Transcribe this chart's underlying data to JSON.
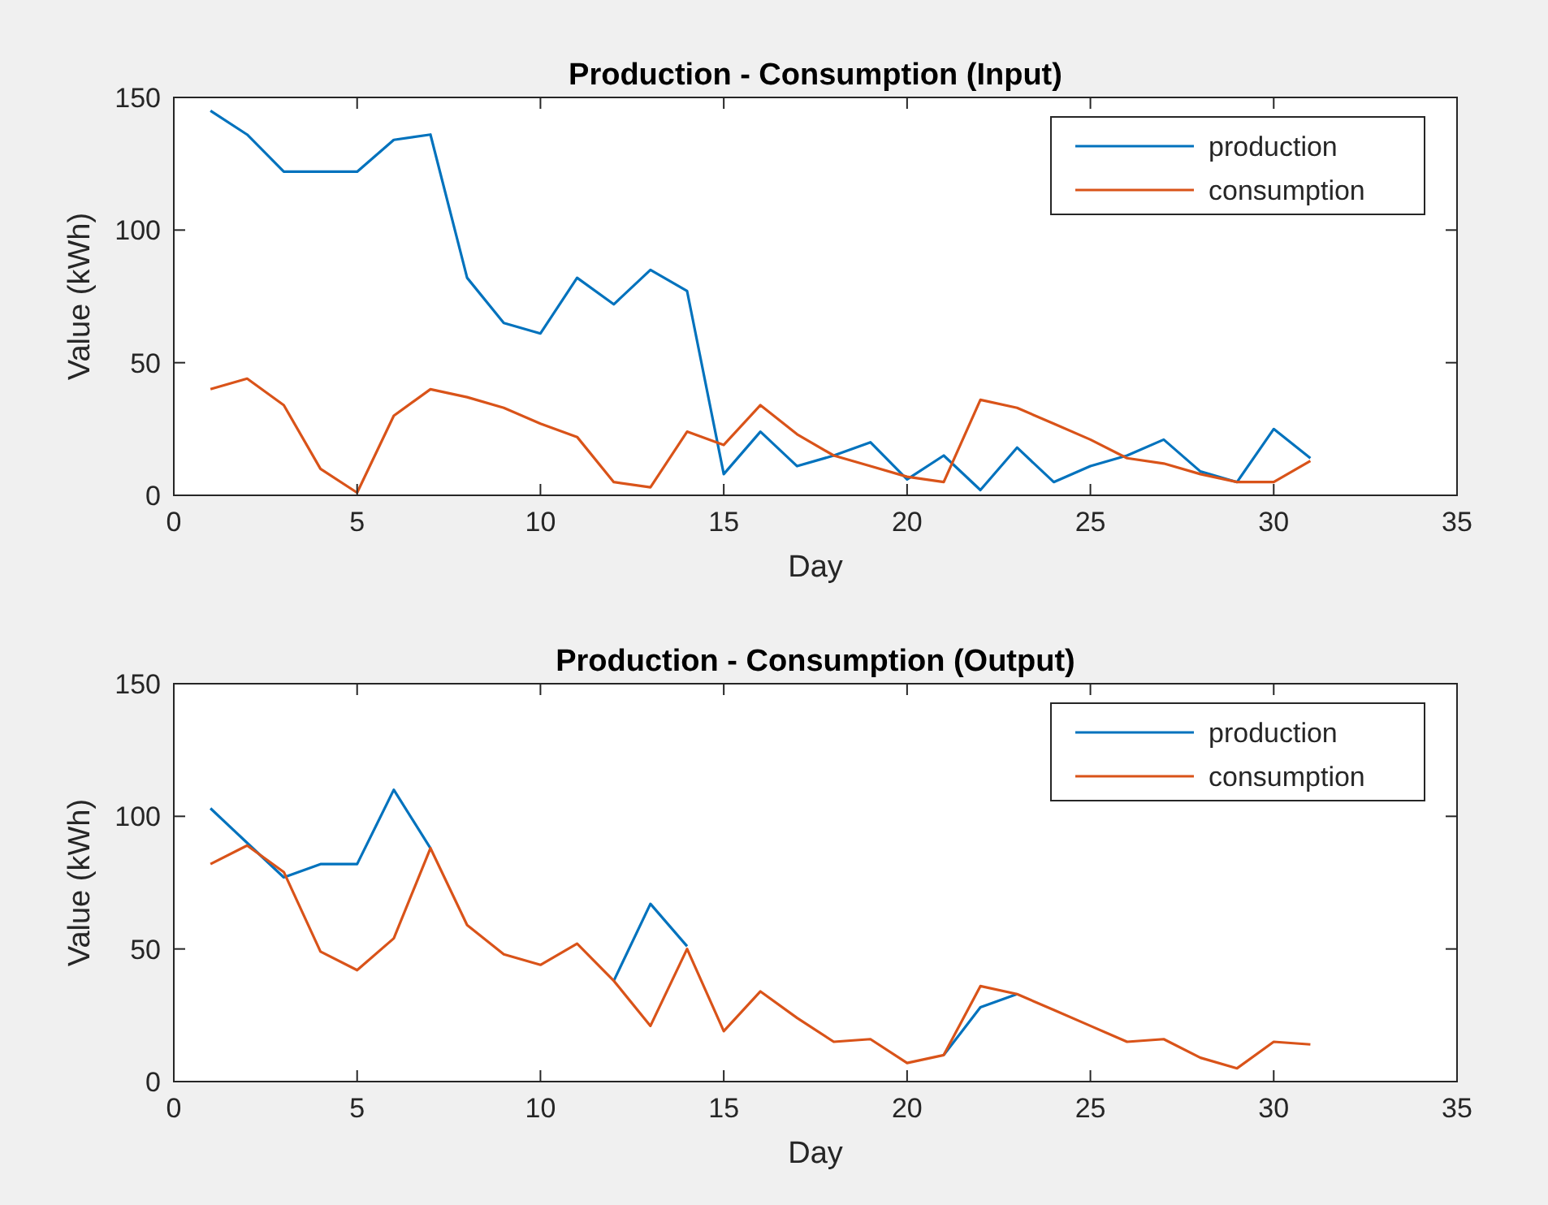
{
  "chart_data": [
    {
      "type": "line",
      "title": "Production - Consumption (Input)",
      "xlabel": "Day",
      "ylabel": "Value (kWh)",
      "x": [
        1,
        2,
        3,
        4,
        5,
        6,
        7,
        8,
        9,
        10,
        11,
        12,
        13,
        14,
        15,
        16,
        17,
        18,
        19,
        20,
        21,
        22,
        23,
        24,
        25,
        26,
        27,
        28,
        29,
        30,
        31
      ],
      "xlim": [
        0,
        35
      ],
      "xticks": [
        0,
        5,
        10,
        15,
        20,
        25,
        30,
        35
      ],
      "ylim": [
        0,
        150
      ],
      "yticks": [
        0,
        50,
        100,
        150
      ],
      "legend": "top right",
      "grid": false,
      "marker": "none",
      "line_style": "solid",
      "series": [
        {
          "name": "production",
          "color": "#0072bd",
          "values": [
            145,
            136,
            122,
            122,
            122,
            134,
            136,
            82,
            65,
            61,
            82,
            72,
            85,
            77,
            8,
            24,
            11,
            15,
            20,
            6,
            15,
            2,
            18,
            5,
            11,
            15,
            21,
            9,
            5,
            25,
            14
          ]
        },
        {
          "name": "consumption",
          "color": "#d95319",
          "values": [
            40,
            44,
            34,
            10,
            1,
            30,
            40,
            37,
            33,
            27,
            22,
            5,
            3,
            24,
            19,
            34,
            23,
            15,
            11,
            7,
            5,
            36,
            33,
            27,
            21,
            14,
            12,
            8,
            5,
            5,
            13
          ]
        }
      ]
    },
    {
      "type": "line",
      "title": "Production - Consumption (Output)",
      "xlabel": "Day",
      "ylabel": "Value (kWh)",
      "x": [
        1,
        2,
        3,
        4,
        5,
        6,
        7,
        8,
        9,
        10,
        11,
        12,
        13,
        14,
        15,
        16,
        17,
        18,
        19,
        20,
        21,
        22,
        23,
        24,
        25,
        26,
        27,
        28,
        29,
        30,
        31
      ],
      "xlim": [
        0,
        35
      ],
      "xticks": [
        0,
        5,
        10,
        15,
        20,
        25,
        30,
        35
      ],
      "ylim": [
        0,
        150
      ],
      "yticks": [
        0,
        50,
        100,
        150
      ],
      "legend": "top right",
      "grid": false,
      "marker": "none",
      "line_style": "solid",
      "series": [
        {
          "name": "production",
          "color": "#0072bd",
          "values": [
            103,
            90,
            77,
            82,
            82,
            110,
            88,
            null,
            null,
            null,
            null,
            38,
            67,
            51,
            null,
            null,
            null,
            null,
            null,
            null,
            10,
            28,
            33,
            null,
            null,
            null,
            null,
            null,
            null,
            null,
            null
          ]
        },
        {
          "name": "consumption",
          "color": "#d95319",
          "values": [
            82,
            89,
            79,
            49,
            42,
            54,
            88,
            59,
            48,
            44,
            52,
            38,
            21,
            50,
            19,
            34,
            24,
            15,
            16,
            7,
            10,
            36,
            33,
            27,
            21,
            15,
            16,
            9,
            5,
            15,
            14
          ]
        }
      ]
    }
  ]
}
